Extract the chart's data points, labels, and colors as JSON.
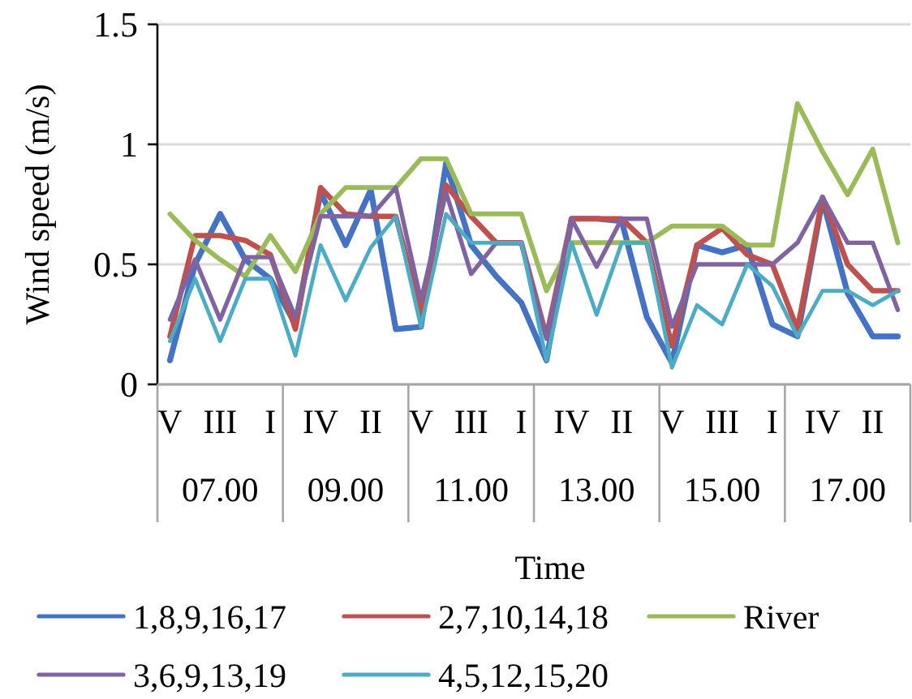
{
  "chart_data": {
    "type": "line",
    "xlabel": "Time",
    "ylabel": "Wind speed (m/s)",
    "categories": [
      "V",
      null,
      "III",
      null,
      "I",
      null,
      "IV",
      null,
      "II",
      null,
      "V",
      null,
      "III",
      null,
      "I",
      null,
      "IV",
      null,
      "II",
      null,
      "V",
      null,
      "III",
      null,
      "I",
      null,
      "IV",
      null,
      "II",
      null
    ],
    "annotations": [
      "07.00",
      "09.00",
      "11.00",
      "13.00",
      "15.00",
      "17.00"
    ],
    "ylim": [
      0,
      1.5
    ],
    "yticks": [
      0,
      0.5,
      1,
      1.5
    ],
    "grid": "y",
    "legend": "bottom",
    "series": [
      {
        "name": "1,8,9,16,17",
        "color": "#4472c4",
        "values": [
          0.1,
          0.5,
          0.71,
          0.52,
          0.44,
          0.25,
          0.8,
          0.58,
          0.81,
          0.23,
          0.24,
          0.92,
          0.58,
          0.45,
          0.34,
          0.1,
          0.69,
          0.69,
          0.68,
          0.28,
          0.09,
          0.58,
          0.55,
          0.58,
          0.25,
          0.2,
          0.77,
          0.38,
          0.2,
          0.2
        ]
      },
      {
        "name": "2,7,10,14,18",
        "color": "#c0504d",
        "values": [
          0.2,
          0.62,
          0.62,
          0.6,
          0.54,
          0.23,
          0.82,
          0.71,
          0.7,
          0.7,
          0.3,
          0.83,
          0.7,
          0.59,
          0.59,
          0.2,
          0.69,
          0.69,
          0.69,
          0.59,
          0.16,
          0.58,
          0.65,
          0.54,
          0.5,
          0.23,
          0.78,
          0.5,
          0.39,
          0.39
        ]
      },
      {
        "name": "River",
        "color": "#9bbb59",
        "values": [
          0.71,
          0.6,
          0.52,
          0.45,
          0.62,
          0.47,
          0.71,
          0.82,
          0.82,
          0.82,
          0.94,
          0.94,
          0.71,
          0.71,
          0.71,
          0.39,
          0.59,
          0.59,
          0.59,
          0.59,
          0.66,
          0.66,
          0.66,
          0.58,
          0.58,
          1.17,
          0.97,
          0.79,
          0.98,
          0.59
        ]
      },
      {
        "name": "3,6,9,13,19",
        "color": "#8064a2",
        "values": [
          0.27,
          0.52,
          0.27,
          0.53,
          0.53,
          0.28,
          0.7,
          0.7,
          0.7,
          0.82,
          0.35,
          0.8,
          0.46,
          0.59,
          0.59,
          0.19,
          0.69,
          0.49,
          0.69,
          0.69,
          0.24,
          0.5,
          0.5,
          0.5,
          0.5,
          0.59,
          0.78,
          0.59,
          0.59,
          0.31
        ]
      },
      {
        "name": "4,5,12,15,20",
        "color": "#4bacc6",
        "values": [
          0.18,
          0.44,
          0.18,
          0.44,
          0.44,
          0.12,
          0.58,
          0.35,
          0.57,
          0.7,
          0.24,
          0.71,
          0.59,
          0.59,
          0.59,
          0.1,
          0.59,
          0.29,
          0.59,
          0.59,
          0.07,
          0.33,
          0.25,
          0.5,
          0.41,
          0.2,
          0.39,
          0.39,
          0.33,
          0.39
        ]
      }
    ]
  }
}
